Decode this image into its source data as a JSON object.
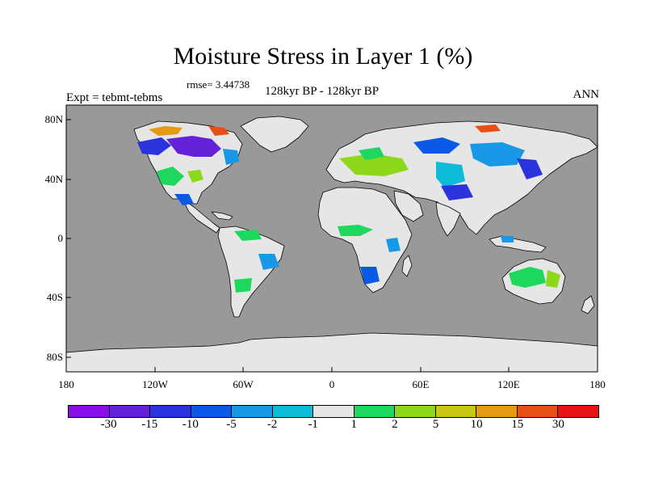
{
  "figure": {
    "title": "Moisture Stress in Layer 1 (%)",
    "rmse_text": "rmse= 3.44738",
    "subtitle": "128kyr BP - 128kyr BP",
    "expt_text": "Expt = tebmt-tebms",
    "season": "ANN"
  },
  "map": {
    "projection": "cylindrical-equidistant",
    "lon_range": [
      -180,
      180
    ],
    "lat_range": [
      -90,
      90
    ],
    "ocean_color": "#999999",
    "land_near_zero_color": "#e6e6e6",
    "coastline_color": "#000000",
    "lat_tick_labels": [
      "80N",
      "40N",
      "0",
      "40S",
      "80S"
    ],
    "lon_tick_labels": [
      "180",
      "120W",
      "60W",
      "0",
      "60E",
      "120E",
      "180"
    ]
  },
  "colorbar": {
    "colors": [
      "#8a0ee6",
      "#6422d8",
      "#2a33dc",
      "#0a5ae6",
      "#1898e6",
      "#0ebbd8",
      "#e6e6e6",
      "#1ed85e",
      "#8ed81c",
      "#c8c814",
      "#e69a14",
      "#e65014",
      "#e61414"
    ],
    "labels": [
      "-30",
      "-15",
      "-10",
      "-5",
      "-2",
      "-1",
      "1",
      "2",
      "5",
      "10",
      "15",
      "30"
    ]
  }
}
